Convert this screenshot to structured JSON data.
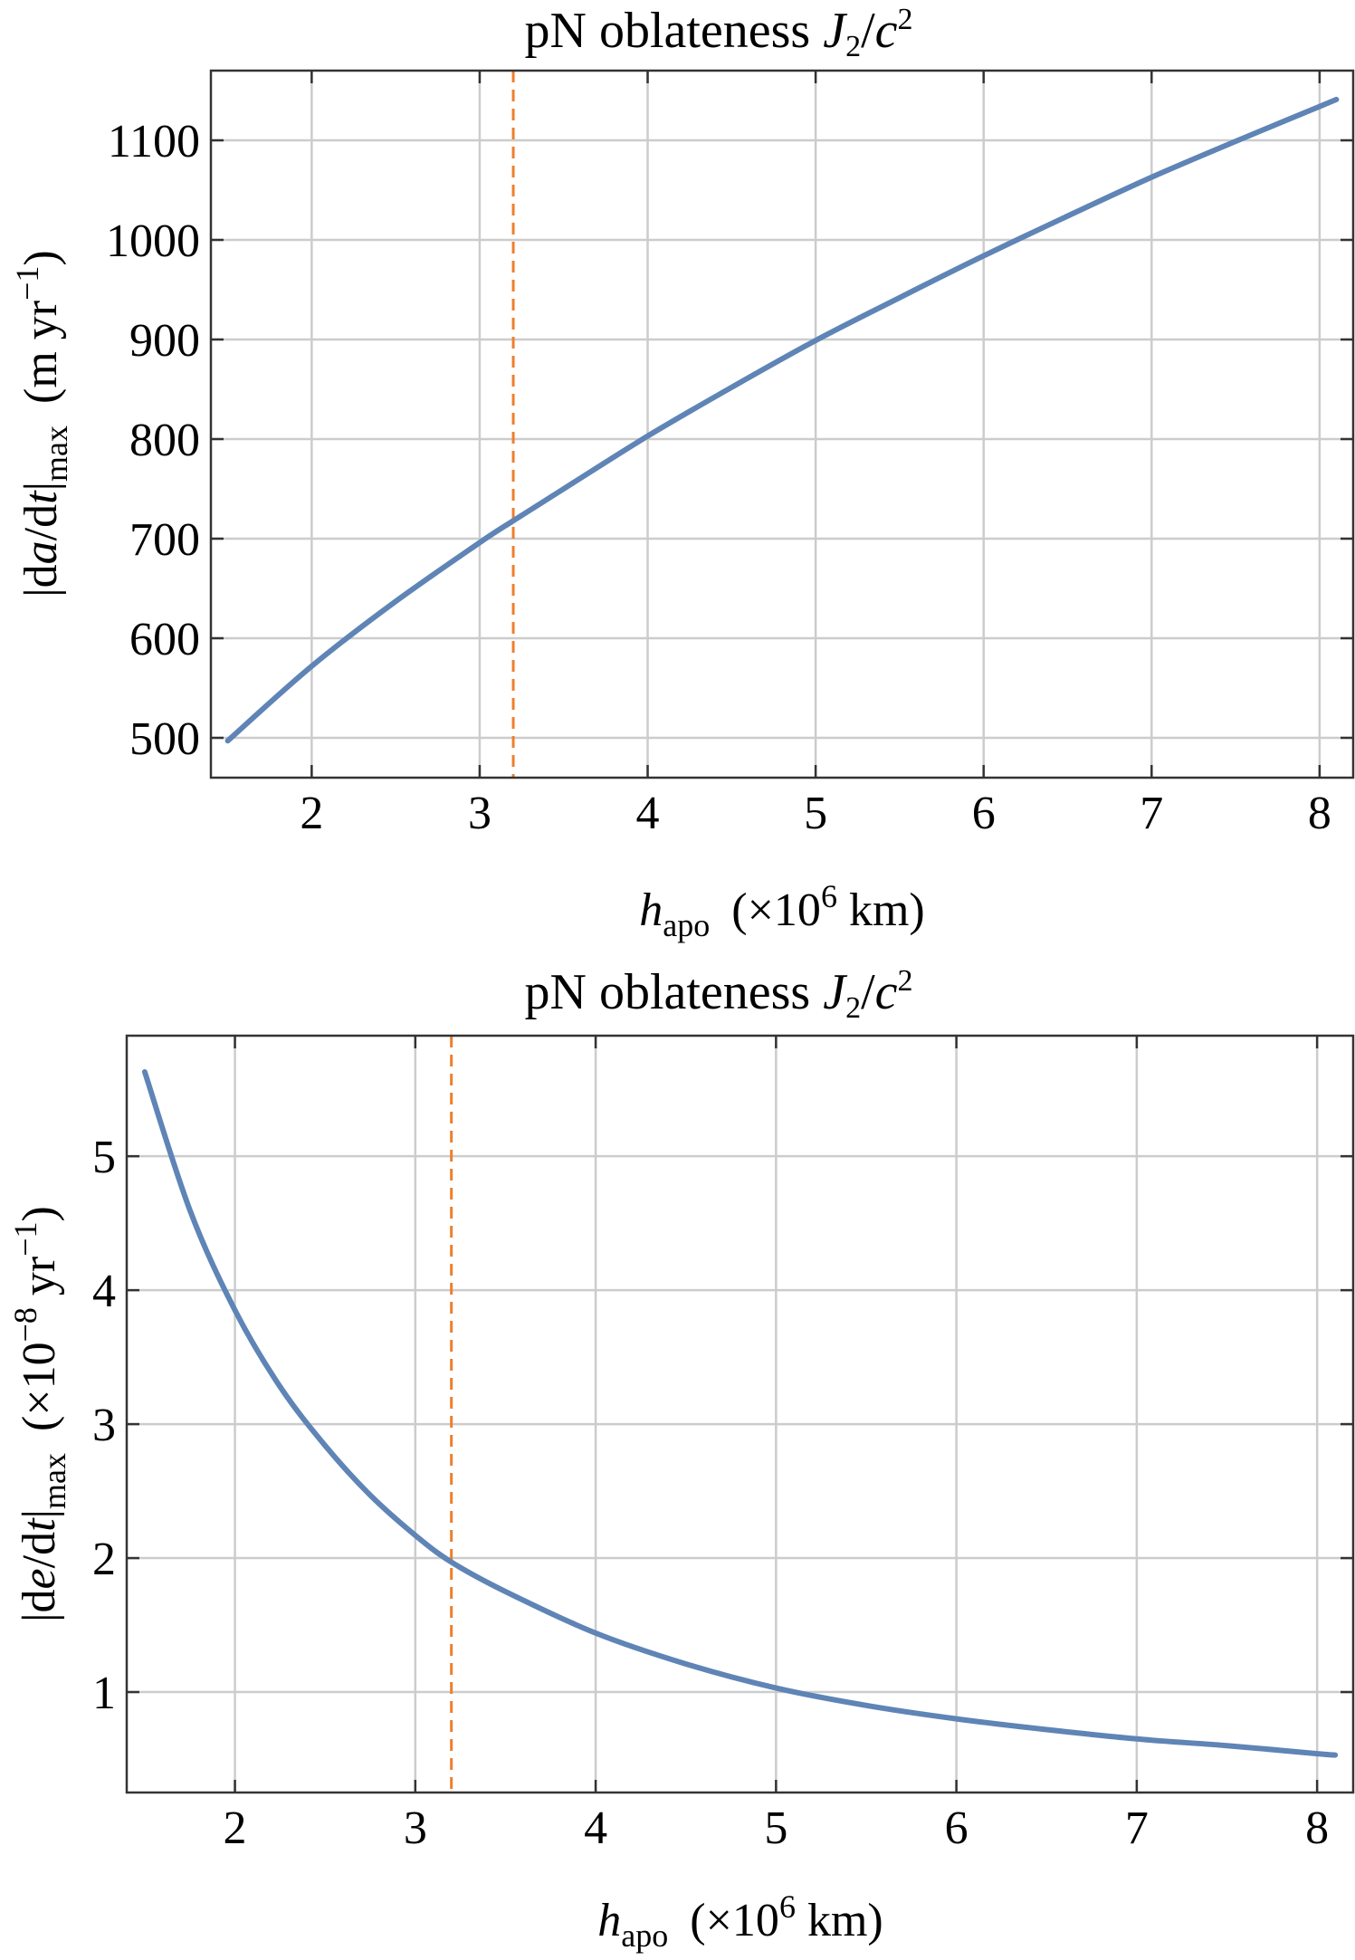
{
  "chart_data": [
    {
      "type": "line",
      "title": "pN oblateness J₂/c²",
      "title_parts": {
        "prefix": "pN oblateness ",
        "J": "J",
        "J_sub": "2",
        "slash": "/",
        "c": "c",
        "c_sup": "2"
      },
      "xlabel": "h_apo (×10^6 km)",
      "xlabel_parts": {
        "var": "h",
        "var_sub": "apo",
        "unit_pre": "(×10",
        "unit_exp": "6",
        "unit_post": " km)"
      },
      "ylabel": "|da/dt|_max (m yr^−1)",
      "ylabel_parts": {
        "abs_open": "|d",
        "var": "a",
        "mid": "/d",
        "tvar": "t",
        "abs_close": "|",
        "sub": "max",
        "unit_pre": "(m  yr",
        "unit_exp": "−1",
        "unit_post": ")"
      },
      "xlim": [
        1.4,
        8.2
      ],
      "ylim": [
        460,
        1170
      ],
      "xticks": [
        2,
        3,
        4,
        5,
        6,
        7,
        8
      ],
      "yticks": [
        500,
        600,
        700,
        800,
        900,
        1000,
        1100
      ],
      "marker_x": 3.2,
      "grid": true,
      "series": [
        {
          "name": "|da/dt|max",
          "x": [
            1.5,
            2,
            2.5,
            3,
            3.2,
            3.5,
            4,
            4.5,
            5,
            5.5,
            6,
            6.5,
            7,
            7.5,
            8,
            8.1
          ],
          "y": [
            497,
            572,
            637,
            696,
            718,
            750,
            803,
            852,
            899,
            942,
            984,
            1024,
            1063,
            1099,
            1134,
            1141
          ]
        }
      ]
    },
    {
      "type": "line",
      "title": "pN oblateness J₂/c²",
      "title_parts": {
        "prefix": "pN oblateness ",
        "J": "J",
        "J_sub": "2",
        "slash": "/",
        "c": "c",
        "c_sup": "2"
      },
      "xlabel": "h_apo (×10^6 km)",
      "xlabel_parts": {
        "var": "h",
        "var_sub": "apo",
        "unit_pre": "(×10",
        "unit_exp": "6",
        "unit_post": " km)"
      },
      "ylabel": "|de/dt|_max (×10^−8 yr^−1)",
      "ylabel_parts": {
        "abs_open": "|d",
        "var": "e",
        "mid": "/d",
        "tvar": "t",
        "abs_close": "|",
        "sub": "max",
        "unit_pre": "(×10",
        "unit_exp": "−8",
        "unit_mid": " yr",
        "unit_exp2": "−1",
        "unit_post": ")"
      },
      "xlim": [
        1.4,
        8.2
      ],
      "ylim": [
        0.25,
        5.9
      ],
      "xticks": [
        2,
        3,
        4,
        5,
        6,
        7,
        8
      ],
      "yticks": [
        1,
        2,
        3,
        4,
        5
      ],
      "marker_x": 3.2,
      "grid": true,
      "series": [
        {
          "name": "|de/dt|max",
          "x": [
            1.5,
            1.75,
            2,
            2.25,
            2.5,
            2.75,
            3,
            3.2,
            3.5,
            4,
            4.5,
            5,
            5.5,
            6,
            6.5,
            7,
            7.5,
            8,
            8.1
          ],
          "y": [
            5.63,
            4.6,
            3.85,
            3.28,
            2.84,
            2.47,
            2.17,
            1.97,
            1.75,
            1.44,
            1.21,
            1.03,
            0.9,
            0.8,
            0.72,
            0.65,
            0.6,
            0.54,
            0.53
          ]
        }
      ]
    }
  ]
}
